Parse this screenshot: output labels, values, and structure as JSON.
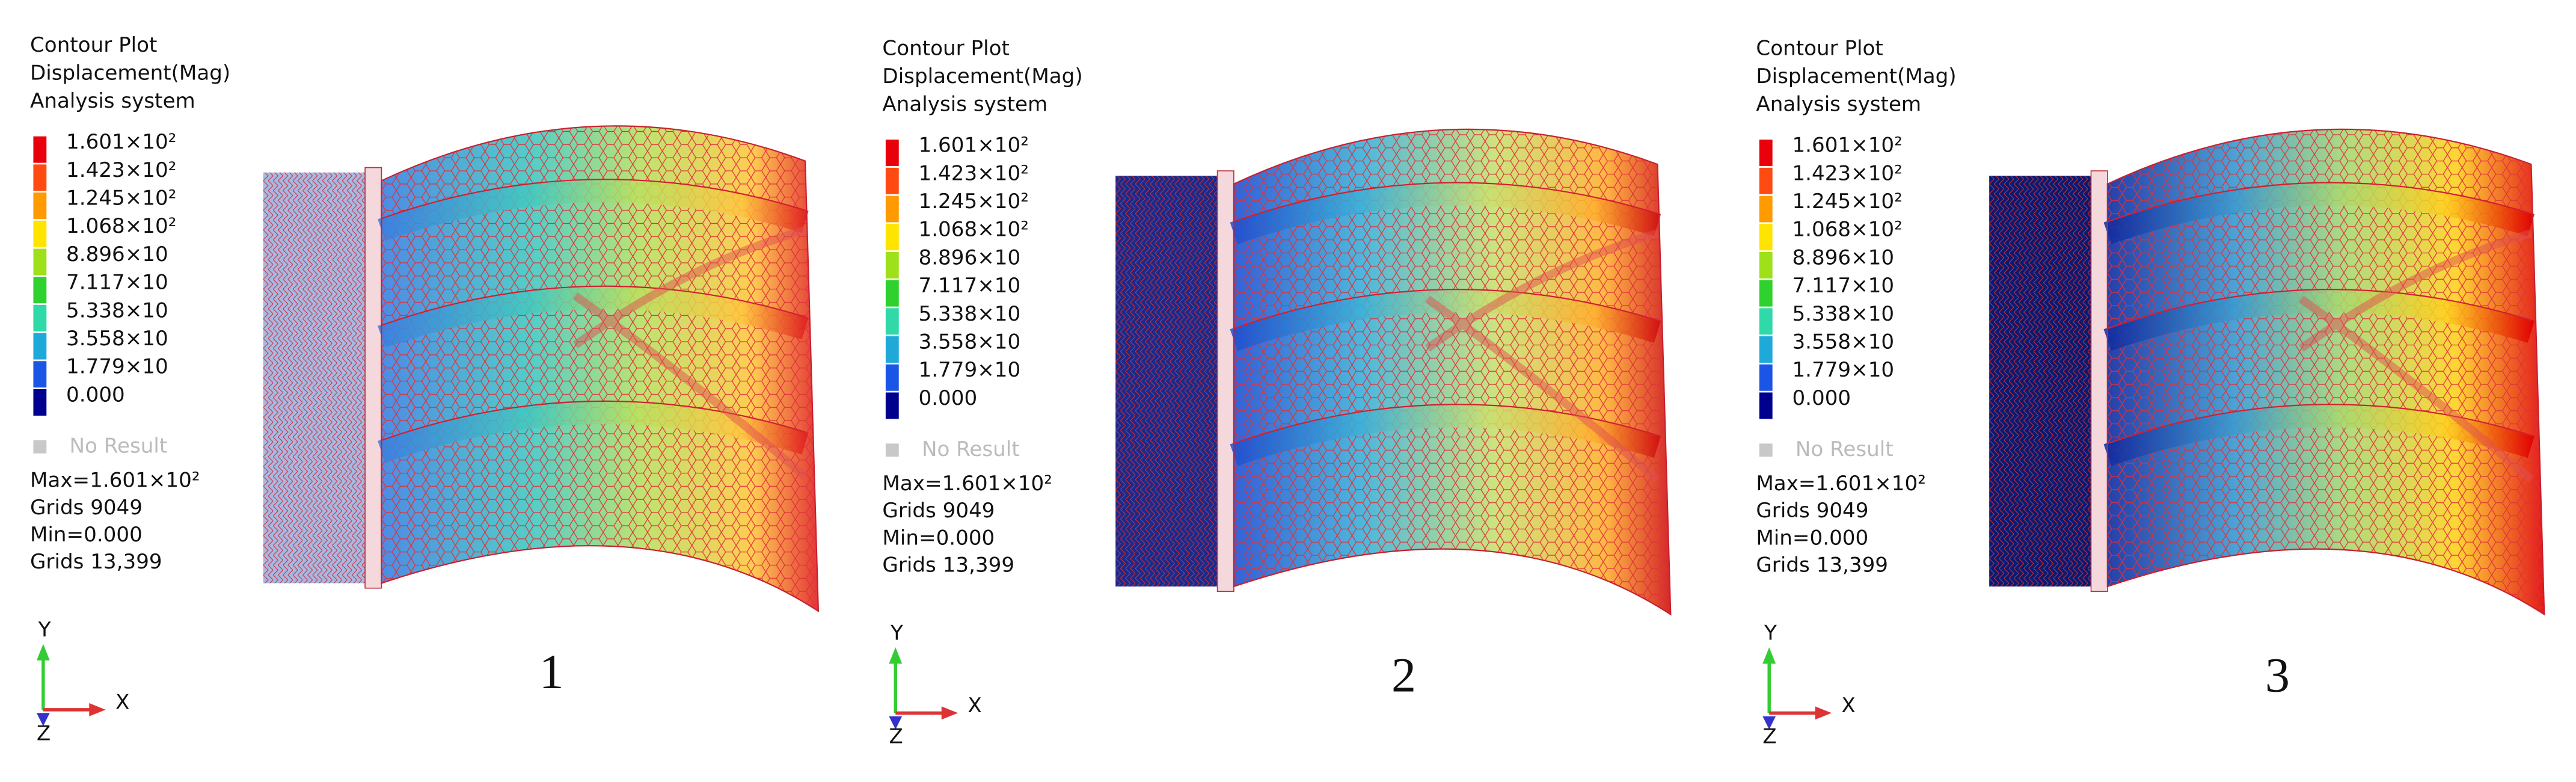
{
  "panels": [
    {
      "title": [
        "Contour Plot",
        "Displacement(Mag)",
        "Analysis system"
      ],
      "legend": {
        "labels": [
          "1.601×10²",
          "1.423×10²",
          "1.245×10²",
          "1.068×10²",
          "8.896×10",
          "7.117×10",
          "5.338×10",
          "3.558×10",
          "1.779×10",
          "0.000"
        ],
        "colors": [
          "#e8000b",
          "#ff4a12",
          "#ff9a00",
          "#ffe400",
          "#9ee01a",
          "#2fd12f",
          "#2fd9a8",
          "#1fa9d9",
          "#1a55e6",
          "#00008f"
        ]
      },
      "no_result": "No Result",
      "stats": [
        "Max=1.601×10²",
        "Grids 9049",
        "Min=0.000",
        "Grids 13,399"
      ],
      "axes": {
        "y": "Y",
        "x": "X",
        "z": "Z"
      },
      "number": "1"
    },
    {
      "title": [
        "Contour Plot",
        "Displacement(Mag)",
        "Analysis system"
      ],
      "legend": {
        "labels": [
          "1.601×10²",
          "1.423×10²",
          "1.245×10²",
          "1.068×10²",
          "8.896×10",
          "7.117×10",
          "5.338×10",
          "3.558×10",
          "1.779×10",
          "0.000"
        ],
        "colors": [
          "#e8000b",
          "#ff4a12",
          "#ff9a00",
          "#ffe400",
          "#9ee01a",
          "#2fd12f",
          "#2fd9a8",
          "#1fa9d9",
          "#1a55e6",
          "#00008f"
        ]
      },
      "no_result": "No Result",
      "stats": [
        "Max=1.601×10²",
        "Grids 9049",
        "Min=0.000",
        "Grids 13,399"
      ],
      "axes": {
        "y": "Y",
        "x": "X",
        "z": "Z"
      },
      "number": "2"
    },
    {
      "title": [
        "Contour Plot",
        "Displacement(Mag)",
        "Analysis system"
      ],
      "legend": {
        "labels": [
          "1.601×10²",
          "1.423×10²",
          "1.245×10²",
          "1.068×10²",
          "8.896×10",
          "7.117×10",
          "5.338×10",
          "3.558×10",
          "1.779×10",
          "0.000"
        ],
        "colors": [
          "#e8000b",
          "#ff4a12",
          "#ff9a00",
          "#ffe400",
          "#9ee01a",
          "#2fd12f",
          "#2fd9a8",
          "#1fa9d9",
          "#1a55e6",
          "#00008f"
        ]
      },
      "no_result": "No Result",
      "stats": [
        "Max=1.601×10²",
        "Grids 9049",
        "Min=0.000",
        "Grids 13,399"
      ],
      "axes": {
        "y": "Y",
        "x": "X",
        "z": "Z"
      },
      "number": "3"
    }
  ]
}
